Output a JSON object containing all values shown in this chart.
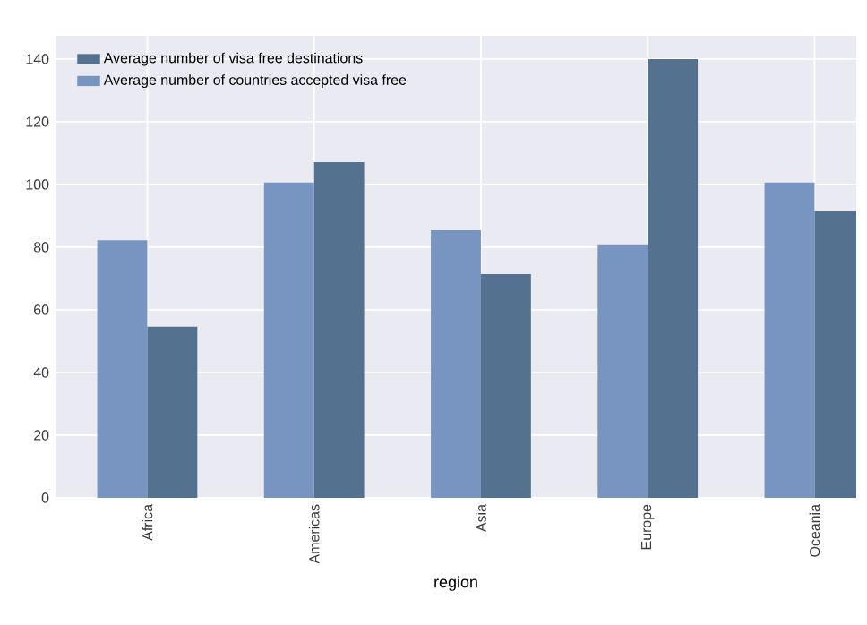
{
  "chart_data": {
    "type": "bar",
    "xlabel": "region",
    "categories": [
      "Africa",
      "Americas",
      "Asia",
      "Europe",
      "Oceania"
    ],
    "series": [
      {
        "name": "Average number of countries accepted visa free",
        "color": "#7894c1",
        "values": [
          82.2,
          100.6,
          85.4,
          80.6,
          100.6
        ]
      },
      {
        "name": "Average number of visa free destinations",
        "color": "#54718f",
        "values": [
          54.6,
          107.1,
          71.4,
          140,
          91.4
        ]
      }
    ],
    "ylim": [
      0,
      147.4
    ],
    "yticks": [
      0,
      20,
      40,
      60,
      80,
      100,
      120,
      140
    ],
    "grid": true,
    "legend": "top left"
  }
}
